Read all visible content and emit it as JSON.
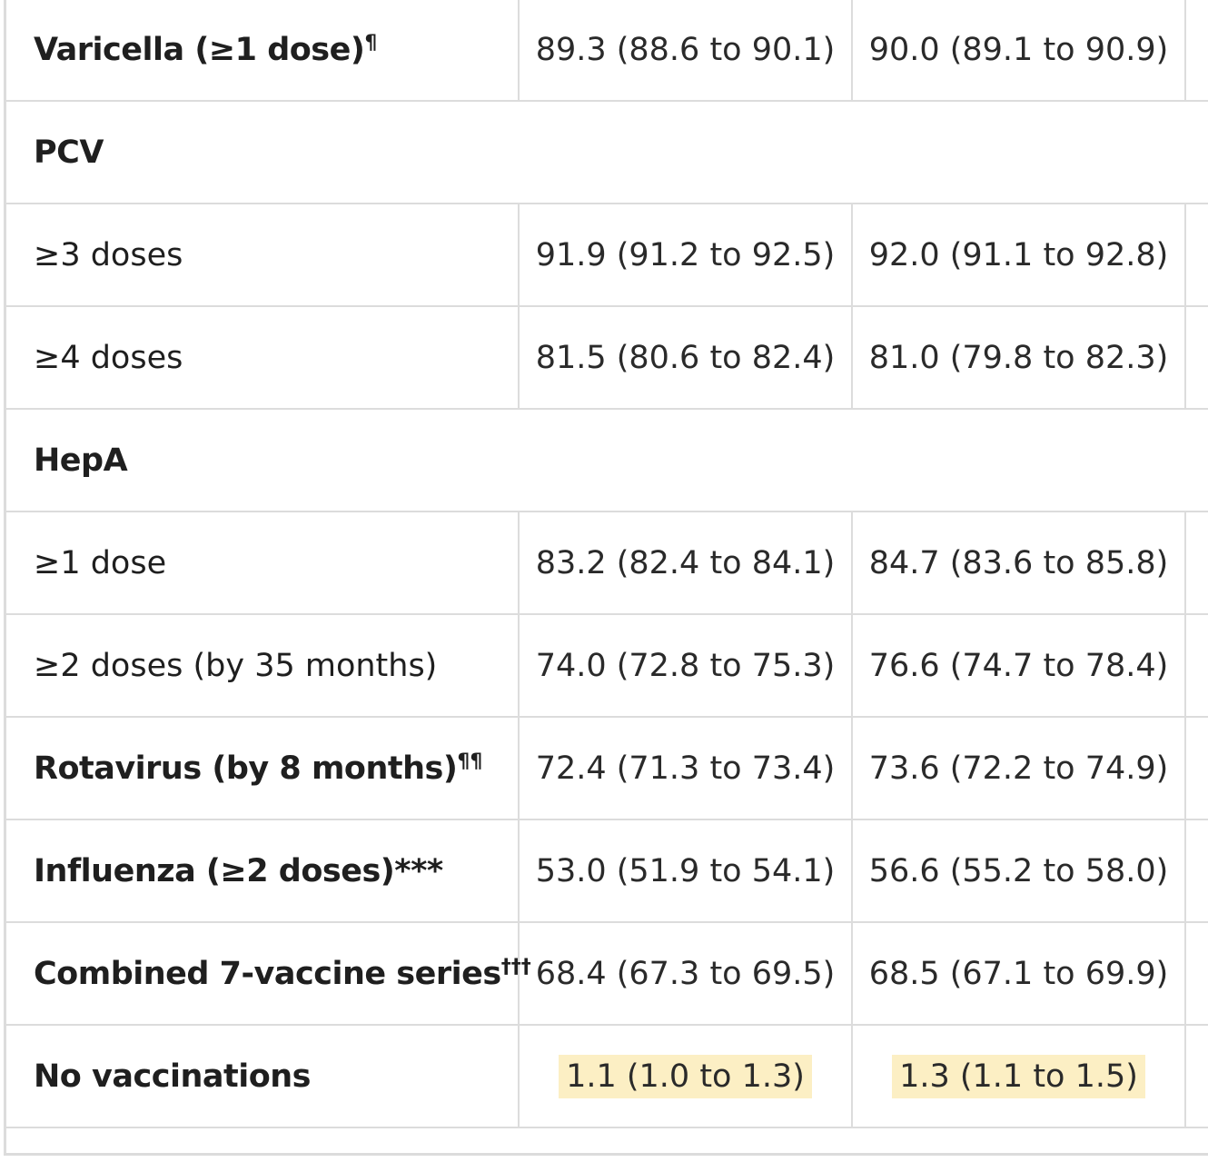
{
  "table": {
    "highlight_color": "#fcefc4",
    "rows": [
      {
        "type": "data",
        "label": "Varicella (≥1 dose)",
        "sup": "¶",
        "bold": true,
        "col1": "89.3 (88.6 to 90.1)",
        "col2": "90.0 (89.1 to 90.9)"
      },
      {
        "type": "section",
        "label": "PCV"
      },
      {
        "type": "data",
        "label": "≥3 doses",
        "sup": "",
        "bold": false,
        "col1": "91.9 (91.2 to 92.5)",
        "col2": "92.0 (91.1 to 92.8)"
      },
      {
        "type": "data",
        "label": "≥4 doses",
        "sup": "",
        "bold": false,
        "col1": "81.5 (80.6 to 82.4)",
        "col2": "81.0 (79.8 to 82.3)"
      },
      {
        "type": "section",
        "label": "HepA"
      },
      {
        "type": "data",
        "label": "≥1 dose",
        "sup": "",
        "bold": false,
        "col1": "83.2 (82.4 to 84.1)",
        "col2": "84.7 (83.6 to 85.8)"
      },
      {
        "type": "data",
        "label": "≥2 doses (by 35 months)",
        "sup": "",
        "bold": false,
        "col1": "74.0 (72.8 to 75.3)",
        "col2": "76.6 (74.7 to 78.4)"
      },
      {
        "type": "data",
        "label": "Rotavirus (by 8 months)",
        "sup": "¶¶",
        "bold": true,
        "col1": "72.4 (71.3 to 73.4)",
        "col2": "73.6 (72.2 to 74.9)"
      },
      {
        "type": "data",
        "label": "Influenza (≥2 doses)***",
        "sup": "",
        "bold": true,
        "col1": "53.0 (51.9 to 54.1)",
        "col2": "56.6 (55.2 to 58.0)"
      },
      {
        "type": "data",
        "label": "Combined 7-vaccine series",
        "sup": "†††",
        "bold": true,
        "col1": "68.4 (67.3 to 69.5)",
        "col2": "68.5 (67.1 to 69.9)"
      },
      {
        "type": "data",
        "label": "No vaccinations",
        "sup": "",
        "bold": true,
        "highlight": true,
        "col1": "1.1 (1.0 to 1.3)",
        "col2": "1.3 (1.1 to 1.5)"
      }
    ]
  }
}
